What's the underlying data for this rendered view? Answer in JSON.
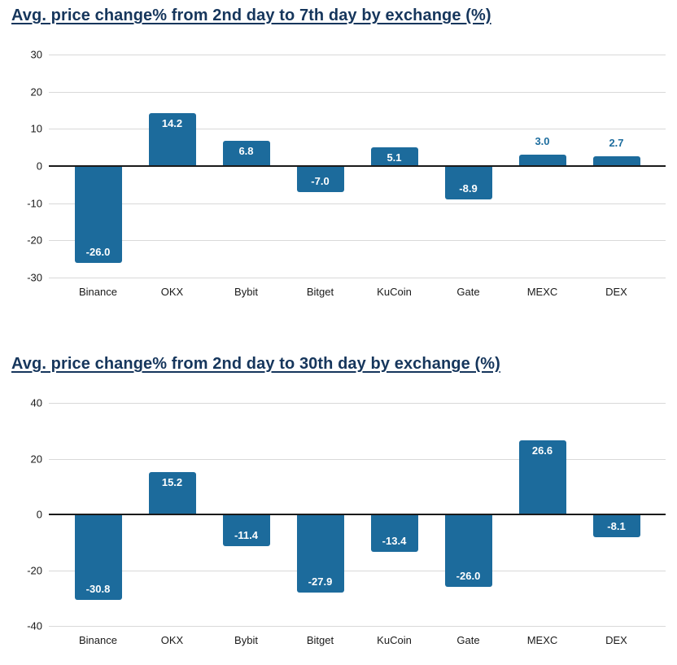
{
  "colors": {
    "bar": "#1c6b9c",
    "title": "#16365c",
    "value_label_inside": "#ffffff",
    "value_label_outside": "#1d6d9e",
    "gridline": "#d9d9d9",
    "zero_line": "#1a1a1a",
    "axis_text": "#1a1a1a",
    "background": "#ffffff"
  },
  "chart_data": [
    {
      "type": "bar",
      "title": "Avg. price change% from 2nd day to 7th day by exchange (%)",
      "categories": [
        "Binance",
        "OKX",
        "Bybit",
        "Bitget",
        "KuCoin",
        "Gate",
        "MEXC",
        "DEX"
      ],
      "values": [
        -26.0,
        14.2,
        6.8,
        -7.0,
        5.1,
        -8.9,
        3.0,
        2.7
      ],
      "value_labels": [
        "-26.0",
        "14.2",
        "6.8",
        "-7.0",
        "5.1",
        "-8.9",
        "3.0",
        "2.7"
      ],
      "ylim": [
        -30,
        30
      ],
      "yticks": [
        30,
        20,
        10,
        0,
        -10,
        -20,
        -30
      ],
      "xlabel": "",
      "ylabel": "",
      "grid": true,
      "legend": "none"
    },
    {
      "type": "bar",
      "title": "Avg. price change% from 2nd day to 30th day by exchange (%)",
      "categories": [
        "Binance",
        "OKX",
        "Bybit",
        "Bitget",
        "KuCoin",
        "Gate",
        "MEXC",
        "DEX"
      ],
      "values": [
        -30.8,
        15.2,
        -11.4,
        -27.9,
        -13.4,
        -26.0,
        26.6,
        -8.1
      ],
      "value_labels": [
        "-30.8",
        "15.2",
        "-11.4",
        "-27.9",
        "-13.4",
        "-26.0",
        "26.6",
        "-8.1"
      ],
      "ylim": [
        -40,
        40
      ],
      "yticks": [
        40,
        20,
        0,
        -20,
        -40
      ],
      "xlabel": "",
      "ylabel": "",
      "grid": true,
      "legend": "none"
    }
  ]
}
